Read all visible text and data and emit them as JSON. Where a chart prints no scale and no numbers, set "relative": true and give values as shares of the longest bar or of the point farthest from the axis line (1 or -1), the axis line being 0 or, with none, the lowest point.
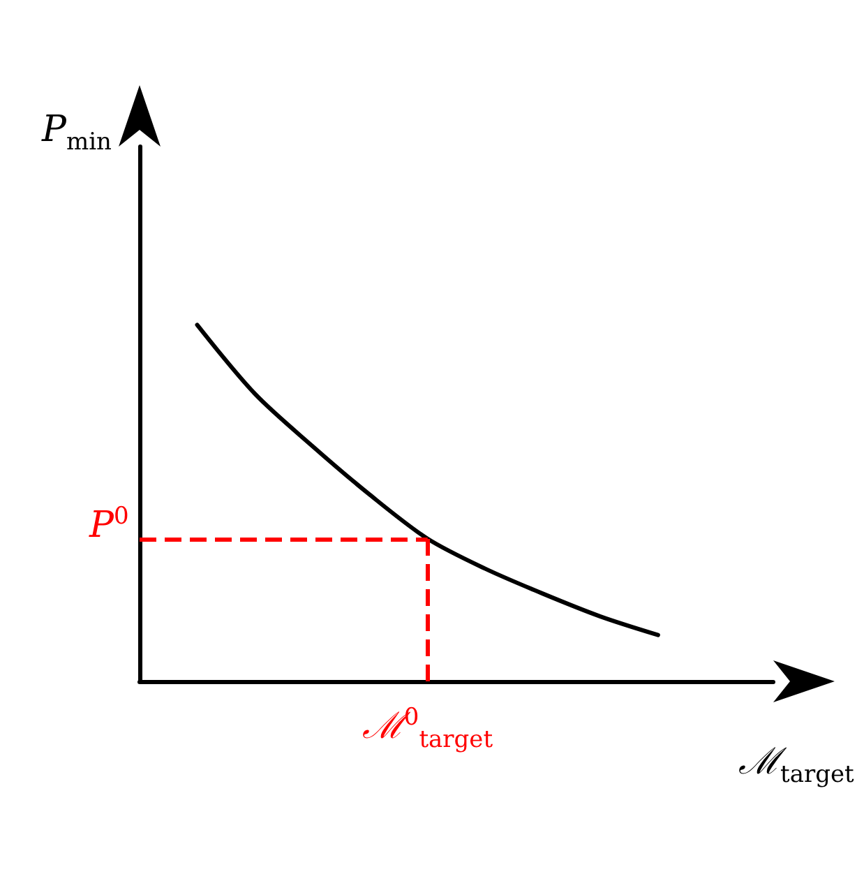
{
  "chart_data": {
    "type": "line",
    "relative": true,
    "xlabel": "ℳ$_{target}$",
    "ylabel": "P$_{min}$",
    "categories": [
      null,
      null,
      null,
      null,
      null,
      null,
      null,
      null,
      null,
      null,
      null,
      null
    ],
    "series": [
      {
        "color": "#000000",
        "values": [
          null,
          1,
          0.807,
          0.66,
          0.523,
          0.4,
          0.316,
          0.246,
          0.182,
          0.13,
          null,
          null
        ]
      }
    ],
    "ref_lines": [
      {
        "axis": "y",
        "value": 0.4,
        "label": "P$^{0}$",
        "color": "#ff0000",
        "line_style": "dashed"
      }
    ],
    "annotations": [
      "ℳ$^{0}$$_{target}$"
    ],
    "marker": "none",
    "grid": false
  }
}
